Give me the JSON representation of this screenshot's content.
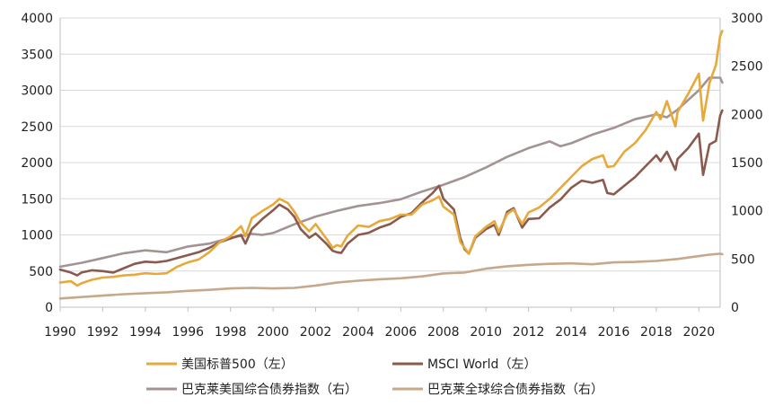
{
  "chart_data": {
    "type": "line",
    "title": "",
    "xlabel": "",
    "ylabel_left": "",
    "ylabel_right": "",
    "xlim": [
      1990,
      2021
    ],
    "ylim_left": [
      0,
      4000
    ],
    "ylim_right": [
      0,
      3000
    ],
    "grid": true,
    "legend_position": "bottom",
    "x_ticks": [
      "1990",
      "1992",
      "1994",
      "1996",
      "1998",
      "2000",
      "2002",
      "2004",
      "2006",
      "2008",
      "2010",
      "2012",
      "2014",
      "2016",
      "2018",
      "2020"
    ],
    "y_ticks_left": [
      "0",
      "500",
      "1000",
      "1500",
      "2000",
      "2500",
      "3000",
      "3500",
      "4000"
    ],
    "y_ticks_right": [
      "0",
      "500",
      "1000",
      "1500",
      "2000",
      "2500",
      "3000"
    ],
    "series": [
      {
        "name": "美国标普500（左）",
        "axis": "left",
        "color": "#E6A93A",
        "points": [
          [
            1990.0,
            340
          ],
          [
            1990.5,
            360
          ],
          [
            1990.8,
            300
          ],
          [
            1991.0,
            330
          ],
          [
            1991.5,
            380
          ],
          [
            1992.0,
            410
          ],
          [
            1992.5,
            420
          ],
          [
            1993.0,
            440
          ],
          [
            1993.5,
            450
          ],
          [
            1994.0,
            470
          ],
          [
            1994.5,
            460
          ],
          [
            1995.0,
            470
          ],
          [
            1995.5,
            560
          ],
          [
            1996.0,
            620
          ],
          [
            1996.5,
            660
          ],
          [
            1997.0,
            760
          ],
          [
            1997.5,
            900
          ],
          [
            1998.0,
            980
          ],
          [
            1998.5,
            1120
          ],
          [
            1998.7,
            980
          ],
          [
            1999.0,
            1230
          ],
          [
            1999.5,
            1330
          ],
          [
            2000.0,
            1420
          ],
          [
            2000.3,
            1500
          ],
          [
            2000.7,
            1440
          ],
          [
            2001.0,
            1320
          ],
          [
            2001.3,
            1170
          ],
          [
            2001.7,
            1050
          ],
          [
            2002.0,
            1150
          ],
          [
            2002.5,
            950
          ],
          [
            2002.8,
            820
          ],
          [
            2003.0,
            860
          ],
          [
            2003.2,
            840
          ],
          [
            2003.5,
            990
          ],
          [
            2004.0,
            1130
          ],
          [
            2004.5,
            1110
          ],
          [
            2005.0,
            1190
          ],
          [
            2005.5,
            1220
          ],
          [
            2006.0,
            1280
          ],
          [
            2006.5,
            1280
          ],
          [
            2007.0,
            1420
          ],
          [
            2007.5,
            1480
          ],
          [
            2007.8,
            1530
          ],
          [
            2008.0,
            1390
          ],
          [
            2008.5,
            1280
          ],
          [
            2008.8,
            900
          ],
          [
            2009.0,
            820
          ],
          [
            2009.2,
            740
          ],
          [
            2009.5,
            980
          ],
          [
            2010.0,
            1110
          ],
          [
            2010.4,
            1190
          ],
          [
            2010.6,
            1040
          ],
          [
            2011.0,
            1290
          ],
          [
            2011.3,
            1350
          ],
          [
            2011.7,
            1150
          ],
          [
            2012.0,
            1310
          ],
          [
            2012.5,
            1380
          ],
          [
            2013.0,
            1500
          ],
          [
            2013.5,
            1650
          ],
          [
            2014.0,
            1800
          ],
          [
            2014.5,
            1950
          ],
          [
            2015.0,
            2050
          ],
          [
            2015.5,
            2100
          ],
          [
            2015.7,
            1940
          ],
          [
            2016.0,
            1950
          ],
          [
            2016.5,
            2150
          ],
          [
            2017.0,
            2270
          ],
          [
            2017.5,
            2450
          ],
          [
            2018.0,
            2700
          ],
          [
            2018.2,
            2600
          ],
          [
            2018.5,
            2850
          ],
          [
            2018.9,
            2500
          ],
          [
            2019.0,
            2700
          ],
          [
            2019.5,
            2950
          ],
          [
            2020.0,
            3230
          ],
          [
            2020.2,
            2580
          ],
          [
            2020.5,
            3100
          ],
          [
            2020.8,
            3350
          ],
          [
            2021.0,
            3750
          ],
          [
            2021.1,
            3820
          ]
        ]
      },
      {
        "name": "MSCI World（左）",
        "axis": "left",
        "color": "#8B5A4E",
        "points": [
          [
            1990.0,
            520
          ],
          [
            1990.5,
            480
          ],
          [
            1990.8,
            440
          ],
          [
            1991.0,
            480
          ],
          [
            1991.5,
            510
          ],
          [
            1992.0,
            500
          ],
          [
            1992.5,
            480
          ],
          [
            1993.0,
            540
          ],
          [
            1993.5,
            600
          ],
          [
            1994.0,
            630
          ],
          [
            1994.5,
            620
          ],
          [
            1995.0,
            640
          ],
          [
            1995.5,
            680
          ],
          [
            1996.0,
            720
          ],
          [
            1996.5,
            760
          ],
          [
            1997.0,
            820
          ],
          [
            1997.5,
            900
          ],
          [
            1998.0,
            950
          ],
          [
            1998.5,
            1000
          ],
          [
            1998.7,
            880
          ],
          [
            1999.0,
            1080
          ],
          [
            1999.5,
            1220
          ],
          [
            2000.0,
            1340
          ],
          [
            2000.3,
            1420
          ],
          [
            2000.7,
            1350
          ],
          [
            2001.0,
            1250
          ],
          [
            2001.3,
            1080
          ],
          [
            2001.7,
            960
          ],
          [
            2002.0,
            1020
          ],
          [
            2002.5,
            880
          ],
          [
            2002.8,
            780
          ],
          [
            2003.0,
            760
          ],
          [
            2003.2,
            750
          ],
          [
            2003.5,
            880
          ],
          [
            2004.0,
            1000
          ],
          [
            2004.5,
            1030
          ],
          [
            2005.0,
            1100
          ],
          [
            2005.5,
            1150
          ],
          [
            2006.0,
            1250
          ],
          [
            2006.5,
            1300
          ],
          [
            2007.0,
            1450
          ],
          [
            2007.5,
            1580
          ],
          [
            2007.8,
            1680
          ],
          [
            2008.0,
            1500
          ],
          [
            2008.5,
            1350
          ],
          [
            2008.8,
            950
          ],
          [
            2009.0,
            800
          ],
          [
            2009.2,
            740
          ],
          [
            2009.5,
            960
          ],
          [
            2010.0,
            1080
          ],
          [
            2010.4,
            1140
          ],
          [
            2010.6,
            1000
          ],
          [
            2011.0,
            1320
          ],
          [
            2011.3,
            1370
          ],
          [
            2011.7,
            1100
          ],
          [
            2012.0,
            1220
          ],
          [
            2012.5,
            1230
          ],
          [
            2013.0,
            1380
          ],
          [
            2013.5,
            1490
          ],
          [
            2014.0,
            1650
          ],
          [
            2014.5,
            1750
          ],
          [
            2015.0,
            1720
          ],
          [
            2015.5,
            1760
          ],
          [
            2015.7,
            1580
          ],
          [
            2016.0,
            1560
          ],
          [
            2016.5,
            1680
          ],
          [
            2017.0,
            1800
          ],
          [
            2017.5,
            1950
          ],
          [
            2018.0,
            2100
          ],
          [
            2018.2,
            2020
          ],
          [
            2018.5,
            2150
          ],
          [
            2018.9,
            1900
          ],
          [
            2019.0,
            2050
          ],
          [
            2019.5,
            2200
          ],
          [
            2020.0,
            2400
          ],
          [
            2020.2,
            1830
          ],
          [
            2020.5,
            2250
          ],
          [
            2020.8,
            2300
          ],
          [
            2021.0,
            2650
          ],
          [
            2021.1,
            2720
          ]
        ]
      },
      {
        "name": "巴克莱美国综合债券指数（右）",
        "axis": "right",
        "color": "#A39493",
        "points": [
          [
            1990.0,
            420
          ],
          [
            1991.0,
            460
          ],
          [
            1992.0,
            510
          ],
          [
            1993.0,
            560
          ],
          [
            1994.0,
            590
          ],
          [
            1995.0,
            570
          ],
          [
            1996.0,
            630
          ],
          [
            1997.0,
            660
          ],
          [
            1998.0,
            720
          ],
          [
            1999.0,
            760
          ],
          [
            1999.5,
            750
          ],
          [
            2000.0,
            770
          ],
          [
            2001.0,
            860
          ],
          [
            2002.0,
            940
          ],
          [
            2003.0,
            1000
          ],
          [
            2004.0,
            1050
          ],
          [
            2005.0,
            1080
          ],
          [
            2006.0,
            1120
          ],
          [
            2007.0,
            1200
          ],
          [
            2008.0,
            1270
          ],
          [
            2009.0,
            1350
          ],
          [
            2010.0,
            1450
          ],
          [
            2011.0,
            1560
          ],
          [
            2012.0,
            1650
          ],
          [
            2013.0,
            1720
          ],
          [
            2013.5,
            1670
          ],
          [
            2014.0,
            1700
          ],
          [
            2015.0,
            1790
          ],
          [
            2016.0,
            1860
          ],
          [
            2017.0,
            1950
          ],
          [
            2018.0,
            2000
          ],
          [
            2018.5,
            1970
          ],
          [
            2019.0,
            2050
          ],
          [
            2020.0,
            2250
          ],
          [
            2020.5,
            2380
          ],
          [
            2021.0,
            2380
          ],
          [
            2021.1,
            2330
          ]
        ]
      },
      {
        "name": "巴克莱全球综合债券指数（右）",
        "axis": "right",
        "color": "#C8A88A",
        "points": [
          [
            1990.0,
            90
          ],
          [
            1991.0,
            105
          ],
          [
            1992.0,
            120
          ],
          [
            1993.0,
            135
          ],
          [
            1994.0,
            145
          ],
          [
            1995.0,
            155
          ],
          [
            1996.0,
            170
          ],
          [
            1997.0,
            180
          ],
          [
            1998.0,
            195
          ],
          [
            1999.0,
            200
          ],
          [
            2000.0,
            195
          ],
          [
            2001.0,
            200
          ],
          [
            2002.0,
            225
          ],
          [
            2003.0,
            255
          ],
          [
            2004.0,
            275
          ],
          [
            2005.0,
            290
          ],
          [
            2006.0,
            300
          ],
          [
            2007.0,
            320
          ],
          [
            2008.0,
            350
          ],
          [
            2009.0,
            360
          ],
          [
            2010.0,
            400
          ],
          [
            2011.0,
            425
          ],
          [
            2012.0,
            440
          ],
          [
            2013.0,
            450
          ],
          [
            2014.0,
            455
          ],
          [
            2015.0,
            445
          ],
          [
            2016.0,
            465
          ],
          [
            2017.0,
            470
          ],
          [
            2018.0,
            480
          ],
          [
            2019.0,
            500
          ],
          [
            2020.0,
            530
          ],
          [
            2020.5,
            545
          ],
          [
            2021.0,
            555
          ],
          [
            2021.1,
            550
          ]
        ]
      }
    ]
  }
}
